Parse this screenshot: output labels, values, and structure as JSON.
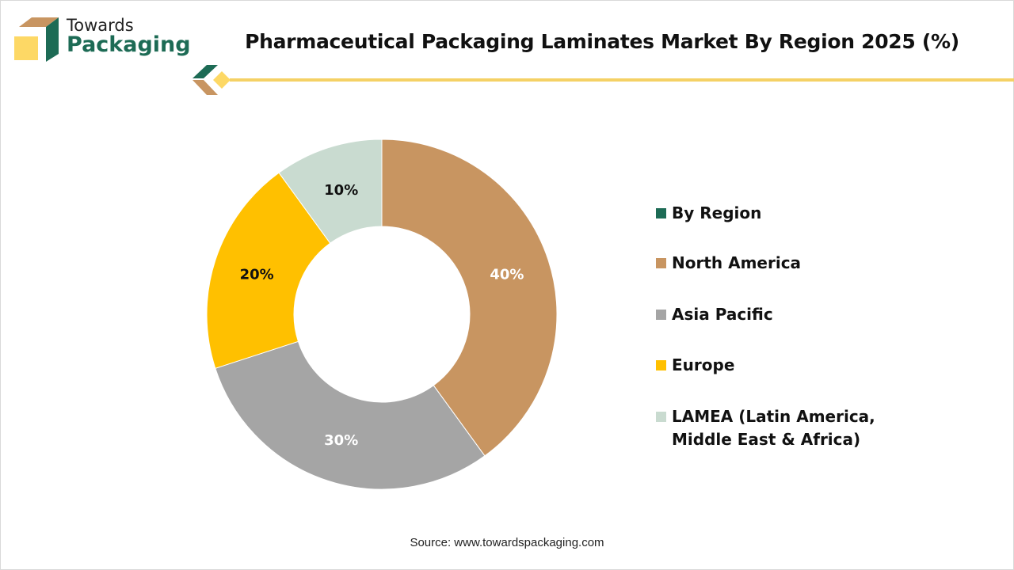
{
  "brand": {
    "line1": "Towards",
    "line2": "Packaging"
  },
  "title": "Pharmaceutical Packaging Laminates Market By Region 2025 (%)",
  "source": "Source: www.towardspackaging.com",
  "chart_data": {
    "type": "pie",
    "donut": true,
    "title": "Pharmaceutical Packaging Laminates Market By Region 2025 (%)",
    "legend_title": "By Region",
    "legend_title_color": "#1d6b55",
    "legend_position": "right",
    "categories": [
      "North America",
      "Asia Pacific",
      "Europe",
      "LAMEA (Latin America, Middle East & Africa)"
    ],
    "legend_lines": [
      [
        "North America"
      ],
      [
        "Asia Pacific"
      ],
      [
        "Europe"
      ],
      [
        "LAMEA (Latin America,",
        "Middle East & Africa)"
      ]
    ],
    "values": [
      40,
      30,
      20,
      10
    ],
    "labels": [
      "40%",
      "30%",
      "20%",
      "10%"
    ],
    "colors": [
      "#c89561",
      "#a5a5a5",
      "#ffc000",
      "#c9dbd0"
    ],
    "label_colors": [
      "#ffffff",
      "#ffffff",
      "#111111",
      "#111111"
    ]
  }
}
